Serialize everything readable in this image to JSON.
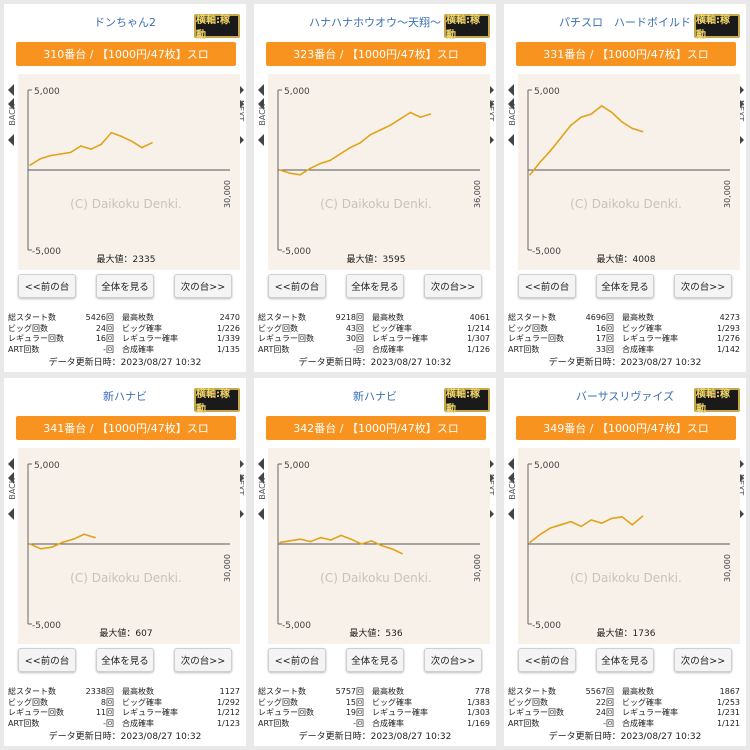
{
  "colors": {
    "accent": "#f7931e",
    "line": "#e0a31a",
    "title": "#3a6fb6",
    "badge_bg": "#1a1a1a",
    "badge_text": "#f0d56a"
  },
  "icons": {
    "prev_arrow": "triangle-left-icon",
    "next_arrow": "triangle-right-icon"
  },
  "panels": [
    {
      "title": "ドンちゃん2",
      "badge": "横軸:稼動",
      "machine": "310番台 / 【1000円/47枚】スロ",
      "axis": {
        "top": "5,000",
        "bottom": "-5,000",
        "right": "30,000",
        "back": "BACK",
        "next": "NEXT"
      },
      "watermark": "(C) Daikoku Denki.",
      "max_label": "最大値：2335",
      "buttons": {
        "prev": "<<前の台",
        "all": "全体を見る",
        "next": "次の台>>"
      },
      "stats": [
        [
          "総スタート数",
          "5426回",
          "最高枚数",
          "2470"
        ],
        [
          "ビッグ回数",
          "24回",
          "ビッグ確率",
          "1/226"
        ],
        [
          "レギュラー回数",
          "16回",
          "レギュラー確率",
          "1/339"
        ],
        [
          "ART回数",
          "-回",
          "合成確率",
          "1/135"
        ]
      ],
      "updated": "データ更新日時：2023/08/27 10:32",
      "chart_data": {
        "type": "line",
        "ylim": [
          -5000,
          5000
        ],
        "y": [
          300,
          700,
          900,
          1000,
          1100,
          1500,
          1300,
          1600,
          2335,
          2100,
          1800,
          1400,
          1700
        ]
      }
    },
    {
      "title": "ハナハナホウオウ～天翔～",
      "badge": "横軸:稼動",
      "machine": "323番台 / 【1000円/47枚】スロ",
      "axis": {
        "top": "5,000",
        "bottom": "-5,000",
        "right": "36,000",
        "back": "BACK",
        "next": "NEXT"
      },
      "watermark": "(C) Daikoku Denki.",
      "max_label": "最大値：3595",
      "buttons": {
        "prev": "<<前の台",
        "all": "全体を見る",
        "next": "次の台>>"
      },
      "stats": [
        [
          "総スタート数",
          "9218回",
          "最高枚数",
          "4061"
        ],
        [
          "ビッグ回数",
          "43回",
          "ビッグ確率",
          "1/214"
        ],
        [
          "レギュラー回数",
          "30回",
          "レギュラー確率",
          "1/307"
        ],
        [
          "ART回数",
          "-回",
          "合成確率",
          "1/126"
        ]
      ],
      "updated": "データ更新日時：2023/08/27 10:32",
      "chart_data": {
        "type": "line",
        "ylim": [
          -5000,
          5000
        ],
        "y": [
          0,
          -200,
          -300,
          100,
          400,
          600,
          1000,
          1400,
          1700,
          2200,
          2500,
          2800,
          3200,
          3595,
          3300,
          3500
        ]
      }
    },
    {
      "title": "パチスロ　ハードボイルド",
      "badge": "横軸:稼動",
      "machine": "331番台 / 【1000円/47枚】スロ",
      "axis": {
        "top": "5,000",
        "bottom": "-5,000",
        "right": "30,000",
        "back": "BACK",
        "next": "NEXT"
      },
      "watermark": "(C) Daikoku Denki.",
      "max_label": "最大値：4008",
      "buttons": {
        "prev": "<<前の台",
        "all": "全体を見る",
        "next": "次の台>>"
      },
      "stats": [
        [
          "総スタート数",
          "4696回",
          "最高枚数",
          "4273"
        ],
        [
          "ビッグ回数",
          "16回",
          "ビッグ確率",
          "1/293"
        ],
        [
          "レギュラー回数",
          "17回",
          "レギュラー確率",
          "1/276"
        ],
        [
          "ART回数",
          "33回",
          "合成確率",
          "1/142"
        ]
      ],
      "updated": "データ更新日時：2023/08/27 10:32",
      "chart_data": {
        "type": "line",
        "ylim": [
          -5000,
          5000
        ],
        "y": [
          -300,
          500,
          1200,
          2000,
          2800,
          3300,
          3500,
          4008,
          3600,
          3000,
          2600,
          2400
        ]
      }
    },
    {
      "title": "新ハナビ",
      "badge": "横軸:稼動",
      "machine": "341番台 / 【1000円/47枚】スロ",
      "axis": {
        "top": "5,000",
        "bottom": "-5,000",
        "right": "30,000",
        "back": "BACK",
        "next": "NEXT"
      },
      "watermark": "(C) Daikoku Denki.",
      "max_label": "最大値：607",
      "buttons": {
        "prev": "<<前の台",
        "all": "全体を見る",
        "next": "次の台>>"
      },
      "stats": [
        [
          "総スタート数",
          "2338回",
          "最高枚数",
          "1127"
        ],
        [
          "ビッグ回数",
          "8回",
          "ビッグ確率",
          "1/292"
        ],
        [
          "レギュラー回数",
          "11回",
          "レギュラー確率",
          "1/212"
        ],
        [
          "ART回数",
          "-回",
          "合成確率",
          "1/123"
        ]
      ],
      "updated": "データ更新日時：2023/08/27 10:32",
      "chart_data": {
        "type": "line",
        "ylim": [
          -5000,
          5000
        ],
        "y": [
          0,
          -300,
          -200,
          100,
          300,
          607,
          400
        ]
      }
    },
    {
      "title": "新ハナビ",
      "badge": "横軸:稼動",
      "machine": "342番台 / 【1000円/47枚】スロ",
      "axis": {
        "top": "5,000",
        "bottom": "-5,000",
        "right": "30,000",
        "back": "BACK",
        "next": "NEXT"
      },
      "watermark": "(C) Daikoku Denki.",
      "max_label": "最大値：536",
      "buttons": {
        "prev": "<<前の台",
        "all": "全体を見る",
        "next": "次の台>>"
      },
      "stats": [
        [
          "総スタート数",
          "5757回",
          "最高枚数",
          "778"
        ],
        [
          "ビッグ回数",
          "15回",
          "ビッグ確率",
          "1/383"
        ],
        [
          "レギュラー回数",
          "19回",
          "レギュラー確率",
          "1/303"
        ],
        [
          "ART回数",
          "-回",
          "合成確率",
          "1/169"
        ]
      ],
      "updated": "データ更新日時：2023/08/27 10:32",
      "chart_data": {
        "type": "line",
        "ylim": [
          -5000,
          5000
        ],
        "y": [
          100,
          200,
          300,
          150,
          400,
          250,
          536,
          300,
          0,
          200,
          -100,
          -300,
          -600
        ]
      }
    },
    {
      "title": "バーサスリヴァイズ",
      "badge": "横軸:稼動",
      "machine": "349番台 / 【1000円/47枚】スロ",
      "axis": {
        "top": "5,000",
        "bottom": "-5,000",
        "right": "30,000",
        "back": "BACK",
        "next": "NEXT"
      },
      "watermark": "(C) Daikoku Denki.",
      "max_label": "最大値：1736",
      "buttons": {
        "prev": "<<前の台",
        "all": "全体を見る",
        "next": "次の台>>"
      },
      "stats": [
        [
          "総スタート数",
          "5567回",
          "最高枚数",
          "1867"
        ],
        [
          "ビッグ回数",
          "22回",
          "ビッグ確率",
          "1/253"
        ],
        [
          "レギュラー回数",
          "24回",
          "レギュラー確率",
          "1/231"
        ],
        [
          "ART回数",
          "-回",
          "合成確率",
          "1/121"
        ]
      ],
      "updated": "データ更新日時：2023/08/27 10:32",
      "chart_data": {
        "type": "line",
        "ylim": [
          -5000,
          5000
        ],
        "y": [
          100,
          600,
          1000,
          1200,
          1400,
          1100,
          1500,
          1300,
          1600,
          1700,
          1200,
          1736
        ]
      }
    }
  ]
}
